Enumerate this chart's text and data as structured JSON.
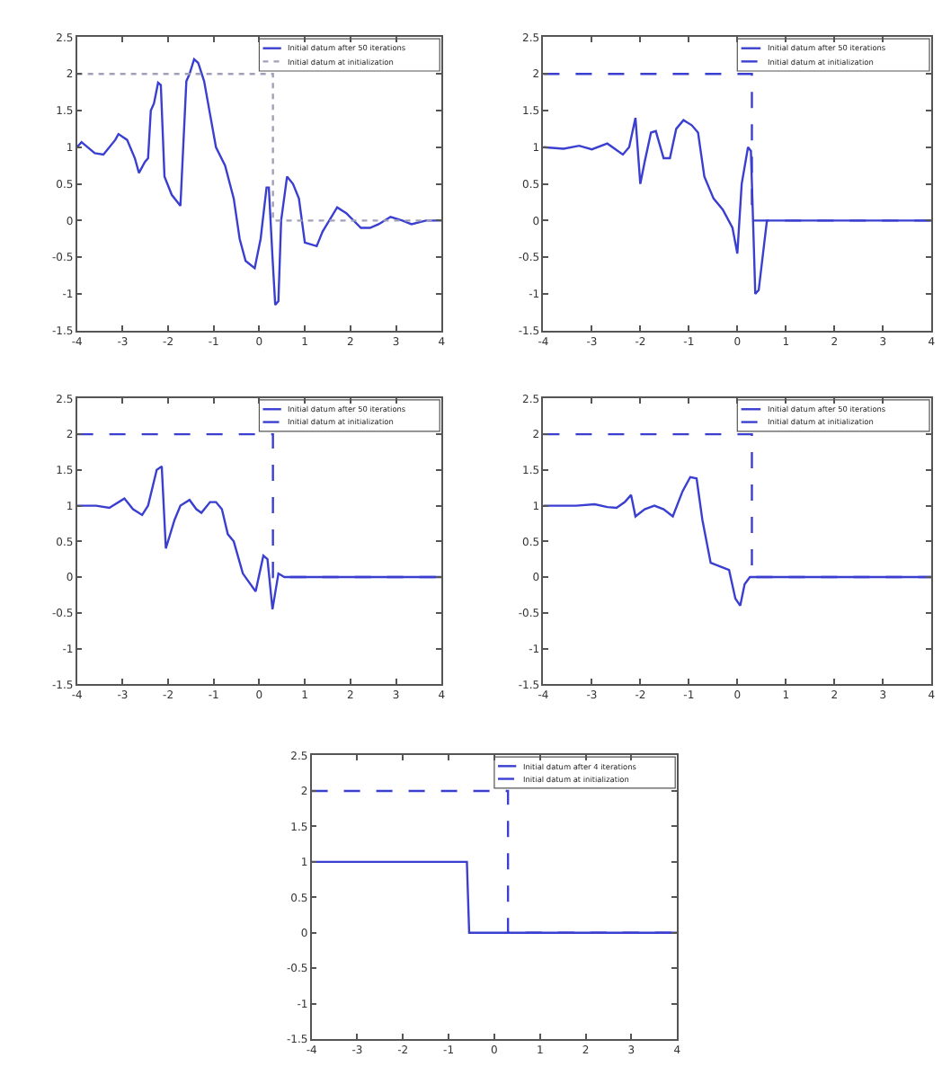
{
  "chart_data": [
    {
      "type": "line",
      "xlim": [
        -4,
        4
      ],
      "ylim": [
        -1.5,
        2.5
      ],
      "xticks": [
        -4,
        -3,
        -2,
        -1,
        0,
        1,
        2,
        3,
        4
      ],
      "yticks": [
        -1.5,
        -1,
        -0.5,
        0,
        0.5,
        1,
        1.5,
        2,
        2.5
      ],
      "grid": false,
      "legend": "top right",
      "marker": "none",
      "series": [
        {
          "name": "Initial datum after 50 iterations",
          "color": "#3a3fd0",
          "line_style": "solid",
          "x": [
            -4.0,
            -3.9,
            -3.61,
            -3.42,
            -3.16,
            -3.09,
            -2.9,
            -2.73,
            -2.64,
            -2.51,
            -2.44,
            -2.38,
            -2.31,
            -2.22,
            -2.16,
            -2.08,
            -1.92,
            -1.73,
            -1.6,
            -1.53,
            -1.43,
            -1.34,
            -1.21,
            -1.08,
            -0.95,
            -0.75,
            -0.56,
            -0.43,
            -0.3,
            -0.1,
            0.03,
            0.16,
            0.21,
            0.29,
            0.35,
            0.42,
            0.48,
            0.61,
            0.74,
            0.87,
            1.0,
            1.26,
            1.39,
            1.71,
            1.91,
            2.23,
            2.43,
            2.62,
            2.88,
            3.14,
            3.34,
            3.66,
            4.0
          ],
          "values": [
            1.0,
            1.07,
            0.92,
            0.9,
            1.1,
            1.18,
            1.1,
            0.85,
            0.65,
            0.8,
            0.85,
            1.5,
            1.6,
            1.88,
            1.85,
            0.6,
            0.35,
            0.2,
            1.9,
            2.0,
            2.2,
            2.15,
            1.9,
            1.45,
            1.0,
            0.75,
            0.3,
            -0.25,
            -0.55,
            -0.65,
            -0.25,
            0.45,
            0.45,
            -0.5,
            -1.15,
            -1.1,
            0.0,
            0.6,
            0.5,
            0.3,
            -0.3,
            -0.35,
            -0.15,
            0.18,
            0.1,
            -0.1,
            -0.1,
            -0.05,
            0.05,
            0.0,
            -0.05,
            0.0,
            0.0
          ]
        },
        {
          "name": "Initial datum at initialization",
          "color": "#a0a0b8",
          "line_style": "dotted",
          "x": [
            -4,
            0.3,
            0.3,
            4
          ],
          "values": [
            2,
            2,
            0,
            0
          ]
        }
      ]
    },
    {
      "type": "line",
      "xlim": [
        -4,
        4
      ],
      "ylim": [
        -1.5,
        2.5
      ],
      "xticks": [
        -4,
        -3,
        -2,
        -1,
        0,
        1,
        2,
        3,
        4
      ],
      "yticks": [
        -1.5,
        -1,
        -0.5,
        0,
        0.5,
        1,
        1.5,
        2,
        2.5
      ],
      "grid": false,
      "legend": "top right",
      "marker": "none",
      "series": [
        {
          "name": "Initial datum after 50 iterations",
          "color": "#3a3fd0",
          "line_style": "solid",
          "x": [
            -4.0,
            -3.58,
            -3.26,
            -3.0,
            -2.68,
            -2.36,
            -2.23,
            -2.1,
            -2.0,
            -1.91,
            -1.78,
            -1.68,
            -1.52,
            -1.39,
            -1.26,
            -1.11,
            -0.94,
            -0.81,
            -0.68,
            -0.49,
            -0.3,
            -0.1,
            0.0,
            0.09,
            0.22,
            0.28,
            0.37,
            0.44,
            0.61,
            4.0
          ],
          "values": [
            1.0,
            0.98,
            1.02,
            0.97,
            1.05,
            0.9,
            1.0,
            1.4,
            0.5,
            0.8,
            1.2,
            1.22,
            0.85,
            0.85,
            1.25,
            1.37,
            1.3,
            1.2,
            0.6,
            0.3,
            0.15,
            -0.1,
            -0.45,
            0.5,
            1.0,
            0.95,
            -1.0,
            -0.95,
            0.0,
            0.0
          ]
        },
        {
          "name": "Initial datum at initialization",
          "color": "#3a3fd0",
          "line_style": "dashed",
          "x": [
            -4,
            0.3,
            0.3,
            4
          ],
          "values": [
            2,
            2,
            0,
            0
          ]
        }
      ]
    },
    {
      "type": "line",
      "xlim": [
        -4,
        4
      ],
      "ylim": [
        -1.5,
        2.5
      ],
      "xticks": [
        -4,
        -3,
        -2,
        -1,
        0,
        1,
        2,
        3,
        4
      ],
      "yticks": [
        -1.5,
        -1,
        -0.5,
        0,
        0.5,
        1,
        1.5,
        2,
        2.5
      ],
      "grid": false,
      "legend": "top right",
      "marker": "none",
      "series": [
        {
          "name": "Initial datum after 50 iterations",
          "color": "#3a3fd0",
          "line_style": "solid",
          "x": [
            -4.0,
            -3.58,
            -3.29,
            -2.96,
            -2.77,
            -2.57,
            -2.44,
            -2.25,
            -2.14,
            -2.05,
            -1.86,
            -1.73,
            -1.53,
            -1.38,
            -1.27,
            -1.08,
            -0.95,
            -0.82,
            -0.69,
            -0.56,
            -0.36,
            -0.08,
            0.09,
            0.18,
            0.29,
            0.42,
            0.55,
            4.0
          ],
          "values": [
            1.0,
            1.0,
            0.97,
            1.1,
            0.95,
            0.87,
            1.0,
            1.5,
            1.55,
            0.4,
            0.8,
            1.0,
            1.08,
            0.95,
            0.9,
            1.05,
            1.05,
            0.95,
            0.6,
            0.5,
            0.05,
            -0.2,
            0.3,
            0.25,
            -0.45,
            0.05,
            0.0,
            0.0
          ]
        },
        {
          "name": "Initial datum at initialization",
          "color": "#3a3fd0",
          "line_style": "dashed",
          "x": [
            -4,
            0.3,
            0.3,
            4
          ],
          "values": [
            2,
            2,
            0,
            0
          ]
        }
      ]
    },
    {
      "type": "line",
      "xlim": [
        -4,
        4
      ],
      "ylim": [
        -1.5,
        2.5
      ],
      "xticks": [
        -4,
        -3,
        -2,
        -1,
        0,
        1,
        2,
        3,
        4
      ],
      "yticks": [
        -1.5,
        -1,
        -0.5,
        0,
        0.5,
        1,
        1.5,
        2,
        2.5
      ],
      "grid": false,
      "legend": "top right",
      "marker": "none",
      "series": [
        {
          "name": "Initial datum after 50 iterations",
          "color": "#3a3fd0",
          "line_style": "solid",
          "x": [
            -4.0,
            -3.32,
            -2.94,
            -2.68,
            -2.49,
            -2.32,
            -2.19,
            -2.1,
            -1.91,
            -1.71,
            -1.52,
            -1.33,
            -1.13,
            -0.97,
            -0.84,
            -0.72,
            -0.55,
            -0.36,
            -0.17,
            -0.04,
            0.06,
            0.15,
            0.26,
            4.0
          ],
          "values": [
            1.0,
            1.0,
            1.02,
            0.98,
            0.97,
            1.05,
            1.15,
            0.85,
            0.95,
            1.0,
            0.95,
            0.85,
            1.2,
            1.4,
            1.38,
            0.8,
            0.2,
            0.15,
            0.1,
            -0.3,
            -0.4,
            -0.1,
            0.0,
            0.0
          ]
        },
        {
          "name": "Initial datum at initialization",
          "color": "#3a3fd0",
          "line_style": "dashed",
          "x": [
            -4,
            0.3,
            0.3,
            4
          ],
          "values": [
            2,
            2,
            0,
            0
          ]
        }
      ]
    },
    {
      "type": "line",
      "xlim": [
        -4,
        4
      ],
      "ylim": [
        -1.5,
        2.5
      ],
      "xticks": [
        -4,
        -3,
        -2,
        -1,
        0,
        1,
        2,
        3,
        4
      ],
      "yticks": [
        -1.5,
        -1,
        -0.5,
        0,
        0.5,
        1,
        1.5,
        2,
        2.5
      ],
      "grid": false,
      "legend": "top right",
      "marker": "none",
      "series": [
        {
          "name": "Initial datum after 4 iterations",
          "color": "#3a3fd0",
          "line_style": "solid",
          "x": [
            -4,
            -0.6,
            -0.55,
            4
          ],
          "values": [
            1,
            1,
            0,
            0
          ]
        },
        {
          "name": "Initial datum at initialization",
          "color": "#3a3fd0",
          "line_style": "dashed",
          "x": [
            -4,
            0.3,
            0.3,
            4
          ],
          "values": [
            2,
            2,
            0,
            0
          ]
        }
      ]
    }
  ]
}
